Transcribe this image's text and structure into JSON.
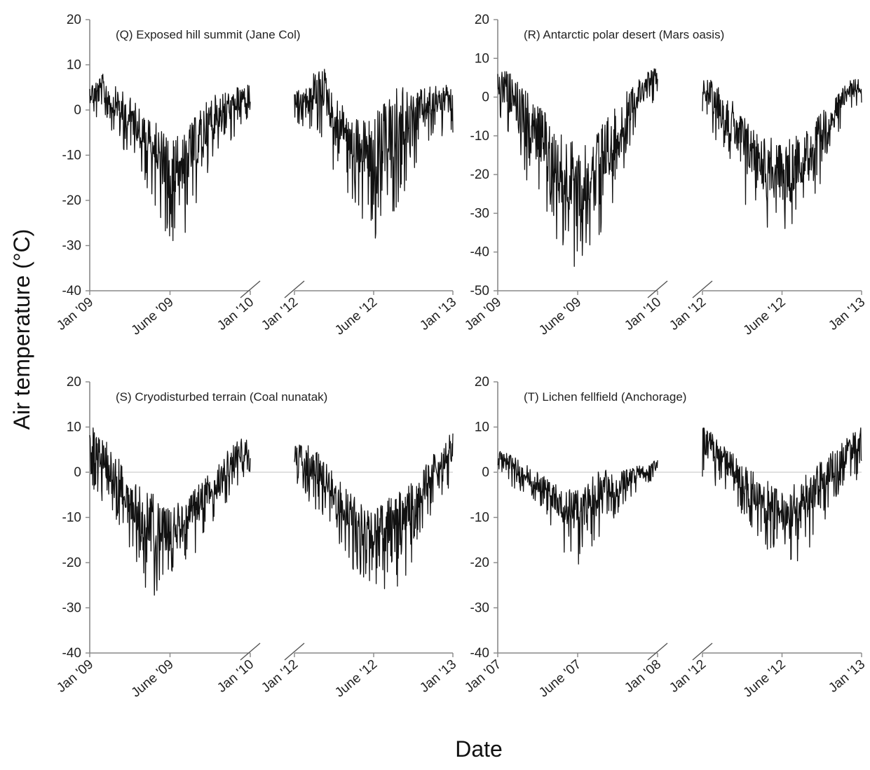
{
  "figure": {
    "ylabel": "Air temperature (°C)",
    "xlabel": "Date"
  },
  "chart_data": [
    {
      "type": "line",
      "title": "(Q) Exposed hill summit (Jane Col)",
      "ylim": [
        -40,
        20
      ],
      "yticks": [
        20,
        10,
        0,
        -10,
        -20,
        -30,
        -40
      ],
      "zero_line": false,
      "segments": [
        {
          "x_ticks": [
            "Jan '09",
            "June '09",
            "Jan '10"
          ],
          "x": [
            "2009-01-01",
            "2009-02-01",
            "2009-03-01",
            "2009-04-01",
            "2009-05-01",
            "2009-06-01",
            "2009-07-01",
            "2009-08-01",
            "2009-09-01",
            "2009-10-01",
            "2009-11-01",
            "2009-12-01",
            "2010-01-01"
          ],
          "max": [
            6,
            8,
            5,
            3,
            0,
            -3,
            -6,
            -5,
            -1,
            3,
            4,
            5,
            6
          ],
          "min": [
            -2,
            -5,
            -7,
            -12,
            -15,
            -24,
            -30,
            -28,
            -22,
            -14,
            -10,
            -5,
            -3
          ]
        },
        {
          "x_ticks": [
            "Jan '12",
            "June '12",
            "Jan '13"
          ],
          "x": [
            "2012-01-01",
            "2012-02-01",
            "2012-03-01",
            "2012-04-01",
            "2012-05-01",
            "2012-06-01",
            "2012-07-01",
            "2012-08-01",
            "2012-09-01",
            "2012-10-01",
            "2012-11-01",
            "2012-12-01",
            "2013-01-01"
          ],
          "max": [
            4,
            5,
            12,
            3,
            1,
            -2,
            -1,
            2,
            6,
            4,
            5,
            6,
            5
          ],
          "min": [
            -3,
            -4,
            -6,
            -14,
            -18,
            -25,
            -30,
            -26,
            -20,
            -15,
            -9,
            -6,
            -5
          ]
        }
      ]
    },
    {
      "type": "line",
      "title": "(R) Antarctic polar desert (Mars oasis)",
      "ylim": [
        -50,
        20
      ],
      "yticks": [
        20,
        10,
        0,
        -10,
        -20,
        -30,
        -40,
        -50
      ],
      "zero_line": false,
      "segments": [
        {
          "x_ticks": [
            "Jan '09",
            "June '09",
            "Jan '10"
          ],
          "x": [
            "2009-01-01",
            "2009-02-01",
            "2009-03-01",
            "2009-04-01",
            "2009-05-01",
            "2009-06-01",
            "2009-07-01",
            "2009-08-01",
            "2009-09-01",
            "2009-10-01",
            "2009-11-01",
            "2009-12-01",
            "2010-01-01"
          ],
          "max": [
            8,
            6,
            2,
            -2,
            -5,
            -10,
            -12,
            -10,
            -6,
            -2,
            3,
            6,
            8
          ],
          "min": [
            -4,
            -12,
            -20,
            -28,
            -34,
            -44,
            -47,
            -40,
            -36,
            -24,
            -12,
            -4,
            0
          ]
        },
        {
          "x_ticks": [
            "Jan '12",
            "June '12",
            "Jan '13"
          ],
          "x": [
            "2012-01-01",
            "2012-02-01",
            "2012-03-01",
            "2012-04-01",
            "2012-05-01",
            "2012-06-01",
            "2012-07-01",
            "2012-08-01",
            "2012-09-01",
            "2012-10-01",
            "2012-11-01",
            "2012-12-01",
            "2013-01-01"
          ],
          "max": [
            5,
            4,
            0,
            -4,
            -8,
            -10,
            -12,
            -10,
            -8,
            -4,
            0,
            4,
            6
          ],
          "min": [
            -4,
            -12,
            -20,
            -28,
            -32,
            -36,
            -39,
            -36,
            -30,
            -22,
            -12,
            -4,
            -2
          ]
        }
      ]
    },
    {
      "type": "line",
      "title": "(S) Cryodisturbed terrain (Coal nunatak)",
      "ylim": [
        -40,
        20
      ],
      "yticks": [
        20,
        10,
        0,
        -10,
        -20,
        -30,
        -40
      ],
      "zero_line": true,
      "segments": [
        {
          "x_ticks": [
            "Jan '09",
            "June '09",
            "Jan '10"
          ],
          "x": [
            "2009-01-01",
            "2009-02-01",
            "2009-03-01",
            "2009-04-01",
            "2009-05-01",
            "2009-05-10",
            "2009-07-20",
            "2009-08-01",
            "2009-09-01",
            "2009-10-01",
            "2009-11-01",
            "2009-12-01",
            "2010-01-01"
          ],
          "max": [
            11,
            8,
            4,
            -2,
            -3,
            -5,
            -8,
            -6,
            -3,
            0,
            4,
            7,
            8
          ],
          "min": [
            -2,
            -8,
            -12,
            -18,
            -27,
            -28,
            -25,
            -20,
            -18,
            -14,
            -8,
            -4,
            -2
          ]
        },
        {
          "x_ticks": [
            "Jan '12",
            "June '12",
            "Jan '13"
          ],
          "x": [
            "2012-01-01",
            "2012-02-01",
            "2012-03-01",
            "2012-04-01",
            "2012-05-01",
            "2012-06-01",
            "2012-07-01",
            "2012-08-01",
            "2012-09-01",
            "2012-10-01",
            "2012-11-01",
            "2012-12-01",
            "2013-01-01"
          ],
          "max": [
            7,
            6,
            4,
            0,
            -4,
            -6,
            -8,
            -6,
            -4,
            -2,
            2,
            6,
            9
          ],
          "min": [
            -3,
            -6,
            -10,
            -14,
            -20,
            -24,
            -26,
            -27,
            -25,
            -20,
            -12,
            -6,
            -3
          ]
        }
      ]
    },
    {
      "type": "line",
      "title": "(T) Lichen fellfield (Anchorage)",
      "ylim": [
        -40,
        20
      ],
      "yticks": [
        20,
        10,
        0,
        -10,
        -20,
        -30,
        -40
      ],
      "zero_line": true,
      "segments": [
        {
          "x_ticks": [
            "Jan '07",
            "June '07",
            "Jan '08"
          ],
          "x": [
            "2007-01-01",
            "2007-02-01",
            "2007-03-01",
            "2007-04-01",
            "2007-05-01",
            "2007-06-01",
            "2007-07-01",
            "2007-08-01",
            "2007-09-01",
            "2007-10-01",
            "2007-11-01",
            "2007-12-01",
            "2008-01-01"
          ],
          "max": [
            5,
            4,
            2,
            0,
            -2,
            -3,
            -4,
            -1,
            1,
            0,
            1,
            2,
            3
          ],
          "min": [
            -1,
            -3,
            -5,
            -8,
            -12,
            -18,
            -21,
            -17,
            -14,
            -10,
            -6,
            -3,
            -1
          ]
        },
        {
          "x_ticks": [
            "Jan '12",
            "June '12",
            "Jan '13"
          ],
          "x": [
            "2012-01-01",
            "2012-02-01",
            "2012-03-01",
            "2012-04-01",
            "2012-05-01",
            "2012-06-01",
            "2012-07-01",
            "2012-08-01",
            "2012-09-01",
            "2012-10-01",
            "2012-11-01",
            "2012-12-01",
            "2013-01-01"
          ],
          "max": [
            11,
            8,
            5,
            2,
            0,
            -2,
            -4,
            -2,
            0,
            3,
            5,
            8,
            10
          ],
          "min": [
            -1,
            -3,
            -6,
            -10,
            -14,
            -20,
            -21,
            -20,
            -18,
            -12,
            -6,
            -3,
            -1
          ]
        }
      ]
    }
  ]
}
